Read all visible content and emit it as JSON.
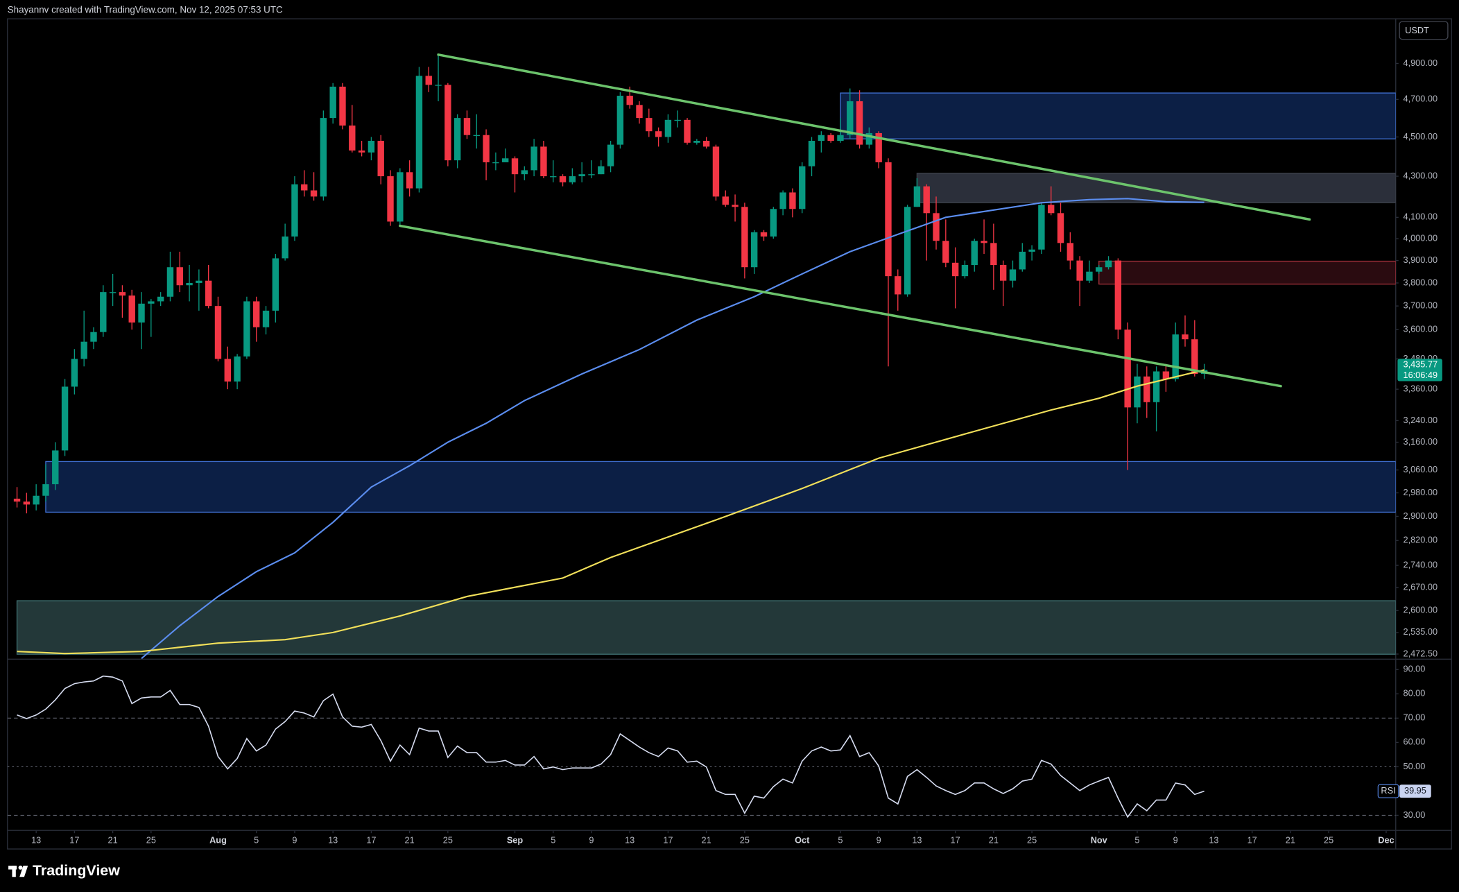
{
  "chart_data": {
    "type": "candlestick",
    "title": "Shayannv created with TradingView.com, Nov 12, 2025 07:53 UTC",
    "currency": "USDT",
    "brand": "TradingView",
    "up_color": "#089981",
    "down_color": "#f23645",
    "log": true,
    "ylim": [
      2458,
      5160
    ],
    "xlim": [
      "07-10",
      "12-02"
    ],
    "yticks": [
      {
        "value": 4900,
        "label": "4,900.00"
      },
      {
        "value": 4700,
        "label": "4,700.00"
      },
      {
        "value": 4500,
        "label": "4,500.00"
      },
      {
        "value": 4300,
        "label": "4,300.00"
      },
      {
        "value": 4100,
        "label": "4,100.00"
      },
      {
        "value": 4000,
        "label": "4,000.00"
      },
      {
        "value": 3900,
        "label": "3,900.00"
      },
      {
        "value": 3800,
        "label": "3,800.00"
      },
      {
        "value": 3700,
        "label": "3,700.00"
      },
      {
        "value": 3600,
        "label": "3,600.00"
      },
      {
        "value": 3480,
        "label": "3,480.00"
      },
      {
        "value": 3360,
        "label": "3,360.00"
      },
      {
        "value": 3240,
        "label": "3,240.00"
      },
      {
        "value": 3160,
        "label": "3,160.00"
      },
      {
        "value": 3060,
        "label": "3,060.00"
      },
      {
        "value": 2980,
        "label": "2,980.00"
      },
      {
        "value": 2900,
        "label": "2,900.00"
      },
      {
        "value": 2820,
        "label": "2,820.00"
      },
      {
        "value": 2740,
        "label": "2,740.00"
      },
      {
        "value": 2670,
        "label": "2,670.00"
      },
      {
        "value": 2600,
        "label": "2,600.00"
      },
      {
        "value": 2535,
        "label": "2,535.00"
      },
      {
        "value": 2472.5,
        "label": "2,472.50"
      }
    ],
    "xticks": [
      {
        "value": "07-13",
        "label": "13"
      },
      {
        "value": "07-17",
        "label": "17"
      },
      {
        "value": "07-21",
        "label": "21"
      },
      {
        "value": "07-25",
        "label": "25"
      },
      {
        "value": "08-01",
        "label": "Aug"
      },
      {
        "value": "08-05",
        "label": "5"
      },
      {
        "value": "08-09",
        "label": "9"
      },
      {
        "value": "08-13",
        "label": "13"
      },
      {
        "value": "08-17",
        "label": "17"
      },
      {
        "value": "08-21",
        "label": "21"
      },
      {
        "value": "08-25",
        "label": "25"
      },
      {
        "value": "09-01",
        "label": "Sep"
      },
      {
        "value": "09-05",
        "label": "5"
      },
      {
        "value": "09-09",
        "label": "9"
      },
      {
        "value": "09-13",
        "label": "13"
      },
      {
        "value": "09-17",
        "label": "17"
      },
      {
        "value": "09-21",
        "label": "21"
      },
      {
        "value": "09-25",
        "label": "25"
      },
      {
        "value": "10-01",
        "label": "Oct"
      },
      {
        "value": "10-05",
        "label": "5"
      },
      {
        "value": "10-09",
        "label": "9"
      },
      {
        "value": "10-13",
        "label": "13"
      },
      {
        "value": "10-17",
        "label": "17"
      },
      {
        "value": "10-21",
        "label": "21"
      },
      {
        "value": "10-25",
        "label": "25"
      },
      {
        "value": "11-01",
        "label": "Nov"
      },
      {
        "value": "11-05",
        "label": "5"
      },
      {
        "value": "11-09",
        "label": "9"
      },
      {
        "value": "11-13",
        "label": "13"
      },
      {
        "value": "11-17",
        "label": "17"
      },
      {
        "value": "11-21",
        "label": "21"
      },
      {
        "value": "11-25",
        "label": "25"
      },
      {
        "value": "12-01",
        "label": "Dec"
      }
    ],
    "x": [
      "07-11",
      "07-12",
      "07-13",
      "07-14",
      "07-15",
      "07-16",
      "07-17",
      "07-18",
      "07-19",
      "07-20",
      "07-21",
      "07-22",
      "07-23",
      "07-24",
      "07-25",
      "07-26",
      "07-27",
      "07-28",
      "07-29",
      "07-30",
      "07-31",
      "08-01",
      "08-02",
      "08-03",
      "08-04",
      "08-05",
      "08-06",
      "08-07",
      "08-08",
      "08-09",
      "08-10",
      "08-11",
      "08-12",
      "08-13",
      "08-14",
      "08-15",
      "08-16",
      "08-17",
      "08-18",
      "08-19",
      "08-20",
      "08-21",
      "08-22",
      "08-23",
      "08-24",
      "08-25",
      "08-26",
      "08-27",
      "08-28",
      "08-29",
      "08-30",
      "08-31",
      "09-01",
      "09-02",
      "09-03",
      "09-04",
      "09-05",
      "09-06",
      "09-07",
      "09-08",
      "09-09",
      "09-10",
      "09-11",
      "09-12",
      "09-13",
      "09-14",
      "09-15",
      "09-16",
      "09-17",
      "09-18",
      "09-19",
      "09-20",
      "09-21",
      "09-22",
      "09-23",
      "09-24",
      "09-25",
      "09-26",
      "09-27",
      "09-28",
      "09-29",
      "09-30",
      "10-01",
      "10-02",
      "10-03",
      "10-04",
      "10-05",
      "10-06",
      "10-07",
      "10-08",
      "10-09",
      "10-10",
      "10-11",
      "10-12",
      "10-13",
      "10-14",
      "10-15",
      "10-16",
      "10-17",
      "10-18",
      "10-19",
      "10-20",
      "10-21",
      "10-22",
      "10-23",
      "10-24",
      "10-25",
      "10-26",
      "10-27",
      "10-28",
      "10-29",
      "10-30",
      "10-31",
      "11-01",
      "11-02",
      "11-03",
      "11-04",
      "11-05",
      "11-06",
      "11-07",
      "11-08",
      "11-09",
      "11-10",
      "11-11",
      "11-12"
    ],
    "open": [
      2960,
      2950,
      2940,
      2970,
      3010,
      3130,
      3370,
      3480,
      3550,
      3590,
      3760,
      3760,
      3745,
      3630,
      3710,
      3720,
      3740,
      3870,
      3790,
      3800,
      3810,
      3700,
      3480,
      3390,
      3490,
      3720,
      3610,
      3680,
      3910,
      4010,
      4260,
      4230,
      4200,
      4600,
      4770,
      4560,
      4430,
      4420,
      4480,
      4300,
      4080,
      4320,
      4240,
      4830,
      4780,
      4780,
      4380,
      4600,
      4510,
      4510,
      4370,
      4370,
      4390,
      4310,
      4330,
      4450,
      4300,
      4300,
      4270,
      4300,
      4310,
      4310,
      4350,
      4460,
      4720,
      4670,
      4600,
      4530,
      4500,
      4590,
      4590,
      4470,
      4480,
      4450,
      4200,
      4160,
      4150,
      3870,
      4030,
      4010,
      4140,
      4220,
      4140,
      4350,
      4480,
      4510,
      4480,
      4510,
      4690,
      4460,
      4520,
      4370,
      3830,
      3750,
      4150,
      4250,
      4120,
      3990,
      3890,
      3830,
      3880,
      3990,
      3980,
      3880,
      3810,
      3860,
      3940,
      3950,
      4160,
      4120,
      3980,
      3900,
      3810,
      3850,
      3870,
      3900,
      3600,
      3290,
      3410,
      3310,
      3430,
      3400,
      3580,
      3560,
      3420
    ],
    "high": [
      3000,
      2980,
      3010,
      3080,
      3160,
      3400,
      3520,
      3680,
      3610,
      3790,
      3840,
      3790,
      3770,
      3760,
      3730,
      3760,
      3940,
      3940,
      3880,
      3860,
      3880,
      3740,
      3530,
      3500,
      3740,
      3740,
      3700,
      3930,
      4070,
      4300,
      4330,
      4320,
      4640,
      4790,
      4790,
      4670,
      4480,
      4500,
      4510,
      4330,
      4340,
      4380,
      4880,
      4880,
      4950,
      4790,
      4620,
      4640,
      4620,
      4540,
      4420,
      4440,
      4400,
      4350,
      4490,
      4480,
      4380,
      4310,
      4340,
      4370,
      4380,
      4380,
      4480,
      4740,
      4770,
      4690,
      4650,
      4550,
      4620,
      4640,
      4600,
      4490,
      4500,
      4460,
      4230,
      4210,
      4170,
      4040,
      4040,
      4150,
      4230,
      4240,
      4370,
      4500,
      4530,
      4520,
      4600,
      4760,
      4750,
      4550,
      4530,
      4390,
      3860,
      4160,
      4290,
      4260,
      4200,
      4090,
      3960,
      3900,
      4000,
      4090,
      4070,
      3900,
      3900,
      3980,
      3970,
      4170,
      4250,
      4170,
      4030,
      3920,
      3900,
      3880,
      3920,
      3910,
      3630,
      3460,
      3450,
      3450,
      3460,
      3630,
      3660,
      3640,
      3460
    ],
    "low": [
      2930,
      2910,
      2920,
      2950,
      2990,
      3110,
      3340,
      3450,
      3520,
      3570,
      3700,
      3650,
      3600,
      3520,
      3570,
      3700,
      3720,
      3760,
      3720,
      3680,
      3690,
      3470,
      3360,
      3360,
      3480,
      3550,
      3580,
      3630,
      3900,
      3990,
      4200,
      4180,
      4180,
      4570,
      4540,
      4420,
      4400,
      4380,
      4260,
      4060,
      4060,
      4200,
      4220,
      4740,
      4690,
      4350,
      4340,
      4490,
      4440,
      4280,
      4330,
      4370,
      4220,
      4280,
      4300,
      4290,
      4270,
      4250,
      4260,
      4270,
      4290,
      4310,
      4320,
      4440,
      4650,
      4570,
      4500,
      4450,
      4470,
      4550,
      4460,
      4460,
      4440,
      4180,
      4150,
      4080,
      3820,
      3840,
      3990,
      4000,
      4110,
      4100,
      4120,
      4300,
      4420,
      4470,
      4470,
      4490,
      4440,
      4440,
      4340,
      3450,
      3680,
      3740,
      4150,
      3900,
      3950,
      3870,
      3690,
      3820,
      3850,
      3930,
      3770,
      3700,
      3780,
      3850,
      3900,
      3930,
      4110,
      3940,
      3860,
      3700,
      3800,
      3840,
      3860,
      3560,
      3060,
      3230,
      3250,
      3200,
      3350,
      3390,
      3530,
      3410,
      3400
    ],
    "close": [
      2950,
      2940,
      2970,
      3010,
      3130,
      3370,
      3480,
      3550,
      3590,
      3760,
      3760,
      3745,
      3630,
      3710,
      3720,
      3740,
      3870,
      3790,
      3800,
      3810,
      3700,
      3480,
      3390,
      3490,
      3720,
      3610,
      3680,
      3910,
      4010,
      4260,
      4230,
      4200,
      4600,
      4770,
      4560,
      4430,
      4420,
      4480,
      4300,
      4080,
      4320,
      4240,
      4830,
      4780,
      4780,
      4380,
      4600,
      4510,
      4510,
      4370,
      4370,
      4390,
      4310,
      4330,
      4450,
      4300,
      4300,
      4270,
      4300,
      4310,
      4310,
      4350,
      4460,
      4720,
      4670,
      4600,
      4530,
      4500,
      4590,
      4590,
      4470,
      4480,
      4450,
      4200,
      4160,
      4150,
      3870,
      4030,
      4010,
      4140,
      4220,
      4140,
      4350,
      4480,
      4510,
      4480,
      4510,
      4690,
      4460,
      4520,
      4370,
      3830,
      3750,
      4150,
      4250,
      4120,
      3990,
      3890,
      3830,
      3880,
      3990,
      3980,
      3880,
      3810,
      3860,
      3940,
      3950,
      4160,
      4120,
      3980,
      3900,
      3810,
      3850,
      3870,
      3900,
      3600,
      3290,
      3410,
      3310,
      3430,
      3400,
      3580,
      3560,
      3420,
      3435.77
    ],
    "price_label": {
      "value": 3435.77,
      "label": "3,435.77"
    },
    "countdown": "16:06:49",
    "lines": [
      {
        "color": "#5b8def",
        "x": [
          "07-24",
          "07-28",
          "08-01",
          "08-05",
          "08-09",
          "08-13",
          "08-17",
          "08-21",
          "08-25",
          "08-29",
          "09-02",
          "09-08",
          "09-14",
          "09-20",
          "09-26",
          "10-01",
          "10-06",
          "10-11",
          "10-16",
          "10-21",
          "10-26",
          "10-31",
          "11-04",
          "11-08",
          "11-12"
        ],
        "values": [
          2460,
          2555,
          2643,
          2720,
          2780,
          2880,
          3000,
          3075,
          3160,
          3230,
          3316,
          3420,
          3518,
          3640,
          3740,
          3840,
          3940,
          4020,
          4100,
          4135,
          4170,
          4185,
          4190,
          4175,
          4172
        ]
      },
      {
        "color": "#f2e05a",
        "x": [
          "07-11",
          "07-16",
          "07-24",
          "08-01",
          "08-08",
          "08-13",
          "08-20",
          "08-27",
          "09-06",
          "09-11",
          "09-22",
          "10-01",
          "10-09",
          "10-19",
          "10-27",
          "11-01",
          "11-05",
          "11-12"
        ],
        "values": [
          2480,
          2474,
          2480,
          2504,
          2514,
          2535,
          2584,
          2643,
          2700,
          2765,
          2888,
          2995,
          3102,
          3200,
          3280,
          3325,
          3372,
          3436
        ]
      }
    ],
    "trendlines": [
      {
        "color": "#6cc36c",
        "x": [
          "08-24",
          "11-23"
        ],
        "values": [
          4950,
          4090
        ]
      },
      {
        "color": "#6cc36c",
        "x": [
          "08-20",
          "11-20"
        ],
        "values": [
          4060,
          3372
        ]
      }
    ],
    "zones": [
      {
        "top": 4735,
        "bottom": 4490,
        "start": "10-05",
        "color": "#0c1f45",
        "border": "#3f6fd1"
      },
      {
        "top": 4315,
        "bottom": 4170,
        "start": "10-13",
        "color": "#2b2f3a",
        "border": "#3c404b"
      },
      {
        "top": 3897,
        "bottom": 3795,
        "start": "11-01",
        "color": "#2a0b10",
        "border": "#a3303a"
      },
      {
        "top": 3090,
        "bottom": 2914,
        "start": "07-14",
        "color": "#0c1f45",
        "border": "#3f6fd1"
      },
      {
        "top": 2630,
        "bottom": 2472,
        "start": "07-11",
        "color": "#233839",
        "border": "#3f7071"
      }
    ],
    "rsi": {
      "label": "RSI",
      "color": "#d6dcf0",
      "ylim": [
        23.8,
        93.9
      ],
      "levels": [
        70,
        50,
        30
      ],
      "yticks": [
        {
          "value": 90,
          "label": "90.00"
        },
        {
          "value": 80,
          "label": "80.00"
        },
        {
          "value": 70,
          "label": "70.00"
        },
        {
          "value": 60,
          "label": "60.00"
        },
        {
          "value": 50,
          "label": "50.00"
        },
        {
          "value": 30,
          "label": "30.00"
        }
      ],
      "values": [
        71.3,
        69.8,
        71.3,
        73.7,
        77.5,
        82.2,
        84.2,
        84.9,
        85.3,
        87.3,
        86.9,
        85.3,
        76,
        78.3,
        78.7,
        78.7,
        81.4,
        75.6,
        75.6,
        74.4,
        66.7,
        54.2,
        49.1,
        53.4,
        61.6,
        56.5,
        58.9,
        65.5,
        68.6,
        72.9,
        72.1,
        70.5,
        77.2,
        79.9,
        70.5,
        66.7,
        66.3,
        67.4,
        60.8,
        52.3,
        58.9,
        55,
        65.9,
        64.7,
        64.7,
        53.8,
        58.5,
        55.8,
        55.8,
        51.9,
        51.9,
        52.6,
        50.7,
        50.7,
        54.2,
        49.1,
        49.9,
        48.8,
        49.5,
        49.5,
        49.5,
        51.1,
        55,
        63.5,
        60.8,
        58.1,
        55.8,
        54.2,
        57.7,
        56.5,
        51.9,
        52.3,
        49.9,
        40.2,
        38.6,
        38.6,
        30.9,
        37.9,
        37.1,
        41.8,
        44.9,
        43.3,
        52.3,
        56.5,
        58.1,
        56.5,
        56.9,
        62.8,
        54.2,
        55.8,
        50.3,
        37.1,
        34.7,
        46,
        48.8,
        45.6,
        42.1,
        40.2,
        38.6,
        40.2,
        43.3,
        43.3,
        40.9,
        39,
        40.9,
        44.1,
        44.9,
        52.6,
        51.1,
        46.4,
        43.3,
        40.2,
        42.5,
        44.1,
        45.6,
        37.1,
        29.3,
        34.7,
        31.9,
        36.3,
        36.3,
        43.3,
        42.5,
        38.6,
        39.95
      ]
    }
  }
}
